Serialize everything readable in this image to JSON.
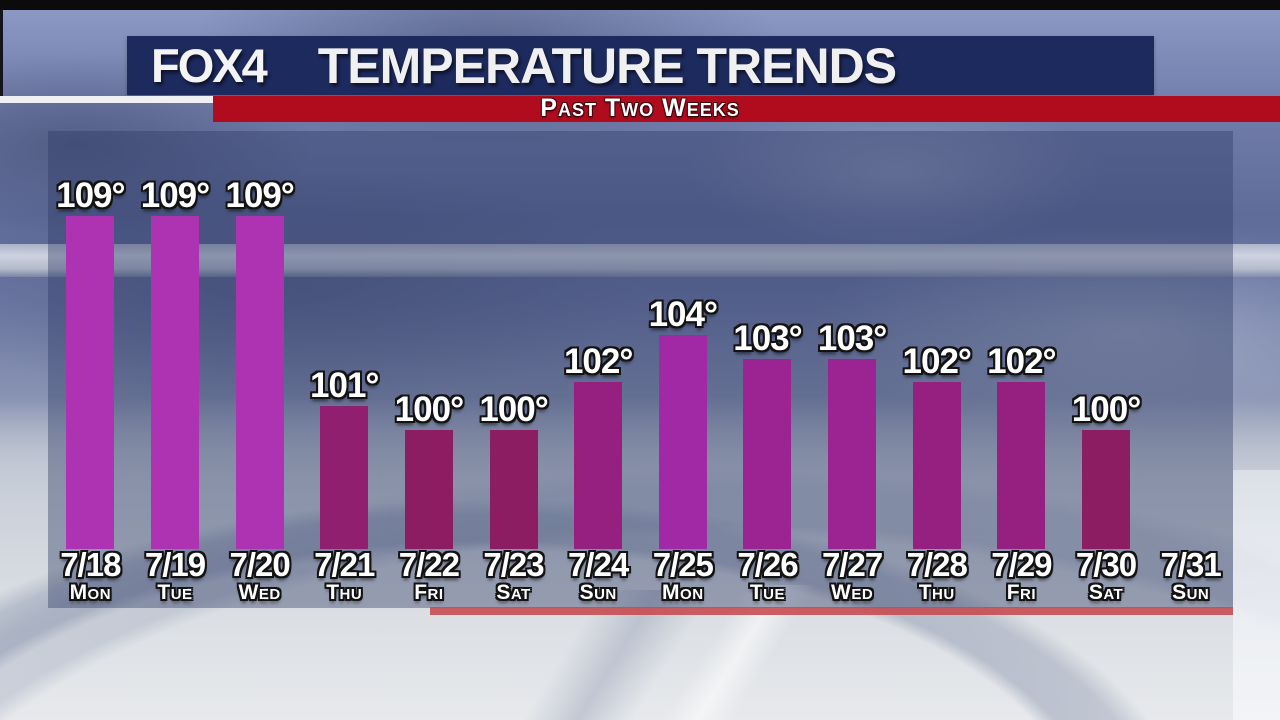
{
  "header": {
    "station": "FOX4",
    "title": "TEMPERATURE TRENDS",
    "subtitle": "Past Two Weeks"
  },
  "chart_data": {
    "type": "bar",
    "title": "Temperature Trends",
    "subtitle": "Past Two Weeks",
    "unit": "°",
    "ylim": [
      95,
      110
    ],
    "grid": false,
    "legend_position": "none",
    "categories": [
      "7/18",
      "7/19",
      "7/20",
      "7/21",
      "7/22",
      "7/23",
      "7/24",
      "7/25",
      "7/26",
      "7/27",
      "7/28",
      "7/29",
      "7/30",
      "7/31"
    ],
    "day_labels": [
      "Mon",
      "Tue",
      "Wed",
      "Thu",
      "Fri",
      "Sat",
      "Sun",
      "Mon",
      "Tue",
      "Wed",
      "Thu",
      "Fri",
      "Sat",
      "Sun"
    ],
    "values": [
      109,
      109,
      109,
      101,
      100,
      100,
      102,
      104,
      103,
      103,
      102,
      102,
      100,
      null
    ],
    "value_labels": [
      "109°",
      "109°",
      "109°",
      "101°",
      "100°",
      "100°",
      "102°",
      "104°",
      "103°",
      "103°",
      "102°",
      "102°",
      "100°",
      ""
    ],
    "bar_colors": [
      "#ad33b3",
      "#ad33b3",
      "#ad33b3",
      "#90206f",
      "#8c1d62",
      "#8c1d62",
      "#962080",
      "#a229a6",
      "#9c2392",
      "#9c2392",
      "#962080",
      "#962080",
      "#8c1d62",
      null
    ]
  },
  "colors": {
    "header_navy": "#1d2a5e",
    "header_red": "#b10c1e",
    "underline_red": "#c64a4e",
    "panel_overlay": "rgba(44,58,100,0.40)",
    "label_text": "#ffffff"
  }
}
